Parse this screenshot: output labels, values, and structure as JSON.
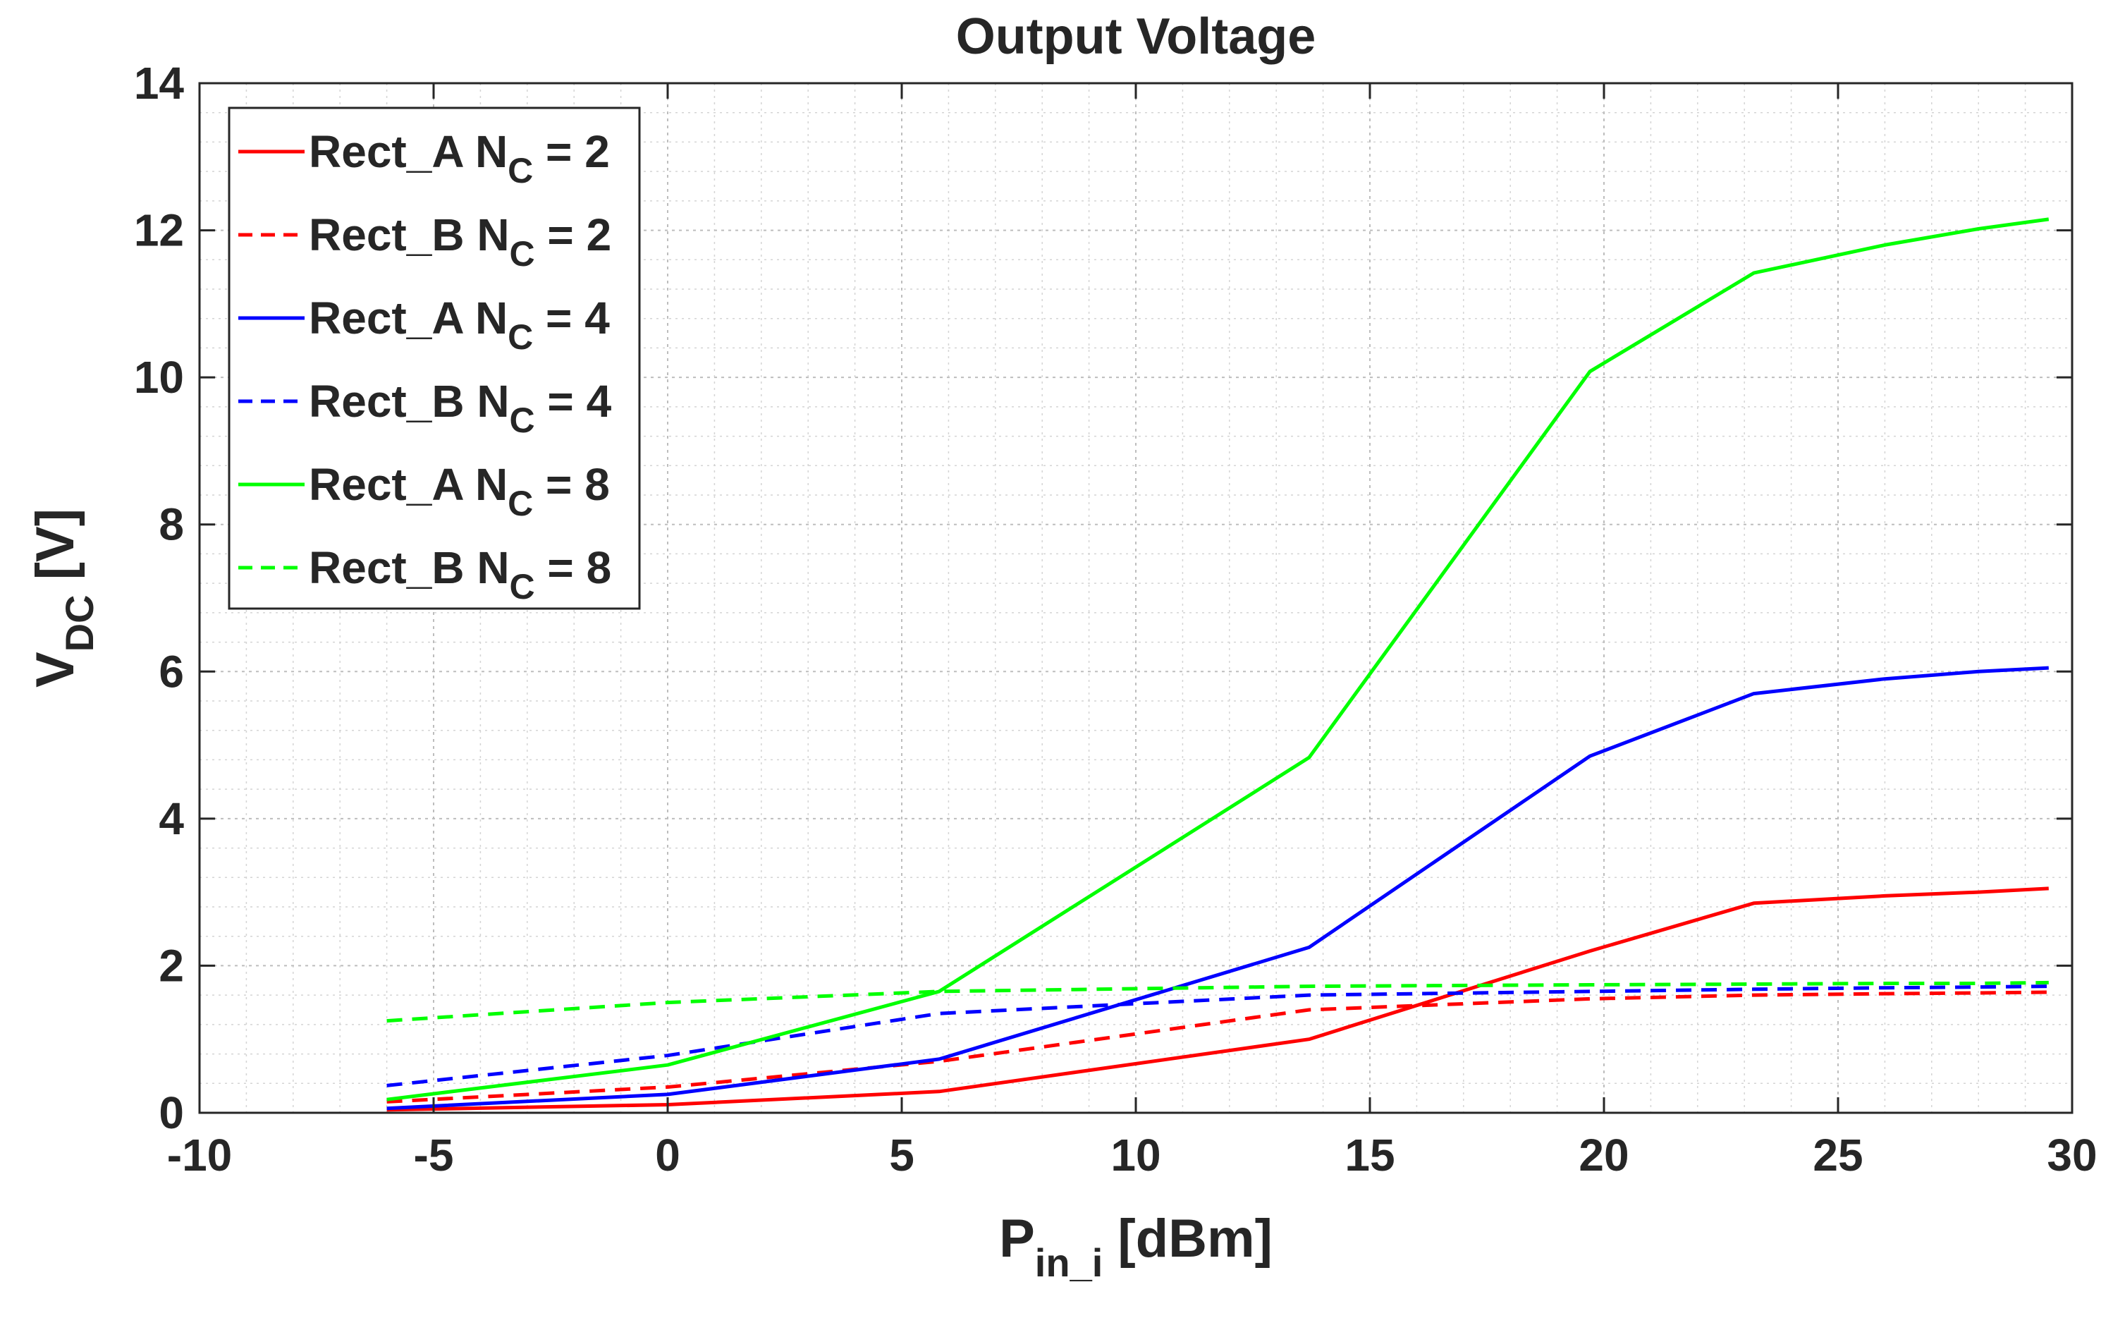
{
  "chart_data": {
    "type": "line",
    "title": "Output Voltage",
    "xlabel": {
      "main": "P",
      "sub": "in_i",
      "suffix": " [dBm]"
    },
    "ylabel": {
      "main": "V",
      "sub": "DC",
      "suffix": " [V]"
    },
    "xlim": [
      -10,
      30
    ],
    "ylim": [
      0,
      14
    ],
    "xticks": [
      -10,
      -5,
      0,
      5,
      10,
      15,
      20,
      25,
      30
    ],
    "yticks": [
      0,
      2,
      4,
      6,
      8,
      10,
      12,
      14
    ],
    "grid": true,
    "minor_grid": true,
    "legend_position": "top-left",
    "x": [
      -6,
      0,
      5.8,
      13.7,
      19.7,
      23.2,
      26,
      28,
      29.5
    ],
    "series": [
      {
        "name": "Rect_A",
        "nc_label": "N",
        "nc_sub": "C",
        "nc_value": " = 2",
        "color": "#ff0000",
        "dash": "solid",
        "values": [
          0.04,
          0.11,
          0.29,
          1.0,
          2.2,
          2.85,
          2.95,
          3.0,
          3.05
        ]
      },
      {
        "name": "Rect_B",
        "nc_label": "N",
        "nc_sub": "C",
        "nc_value": " = 2",
        "color": "#ff0000",
        "dash": "dashed",
        "values": [
          0.15,
          0.35,
          0.7,
          1.4,
          1.55,
          1.6,
          1.62,
          1.63,
          1.64
        ]
      },
      {
        "name": "Rect_A",
        "nc_label": "N",
        "nc_sub": "C",
        "nc_value": " = 4",
        "color": "#0000ff",
        "dash": "solid",
        "values": [
          0.06,
          0.25,
          0.73,
          2.25,
          4.85,
          5.7,
          5.9,
          6.0,
          6.05
        ]
      },
      {
        "name": "Rect_B",
        "nc_label": "N",
        "nc_sub": "C",
        "nc_value": " = 4",
        "color": "#0000ff",
        "dash": "dashed",
        "values": [
          0.37,
          0.78,
          1.35,
          1.6,
          1.65,
          1.68,
          1.7,
          1.71,
          1.72
        ]
      },
      {
        "name": "Rect_A",
        "nc_label": "N",
        "nc_sub": "C",
        "nc_value": " = 8",
        "color": "#00ff00",
        "dash": "solid",
        "values": [
          0.18,
          0.65,
          1.65,
          4.83,
          10.08,
          11.42,
          11.8,
          12.02,
          12.15
        ]
      },
      {
        "name": "Rect_B",
        "nc_label": "N",
        "nc_sub": "C",
        "nc_value": " = 8",
        "color": "#00ff00",
        "dash": "dashed",
        "values": [
          1.25,
          1.5,
          1.65,
          1.72,
          1.74,
          1.75,
          1.76,
          1.76,
          1.77
        ]
      }
    ]
  }
}
